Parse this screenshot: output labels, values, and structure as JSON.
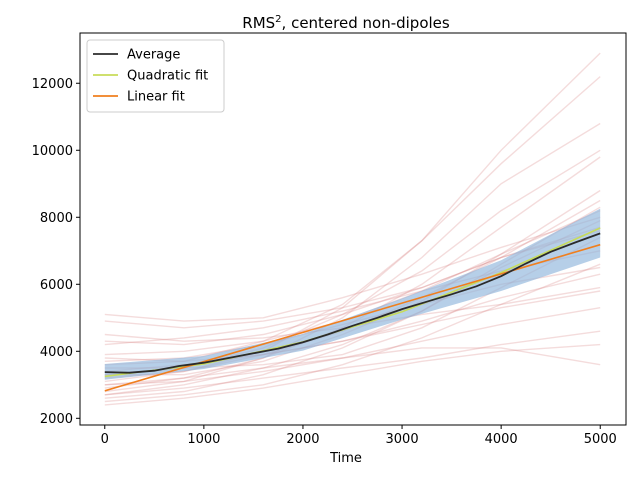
{
  "chart_data": {
    "type": "line",
    "title": "RMS², centered non-dipoles",
    "title_base": "RMS",
    "title_sup": "2",
    "title_rest": ", centered non-dipoles",
    "xlabel": "Time",
    "ylabel": "",
    "xlim": [
      -250,
      5260
    ],
    "ylim": [
      1800,
      13500
    ],
    "xticks": [
      0,
      1000,
      2000,
      3000,
      4000,
      5000
    ],
    "yticks": [
      2000,
      4000,
      6000,
      8000,
      10000,
      12000
    ],
    "grid": false,
    "legend_position": "top-left",
    "legend": [
      {
        "label": "Average",
        "color": "#2b2b2b"
      },
      {
        "label": "Quadratic fit",
        "color": "#c8dc5a"
      },
      {
        "label": "Linear fit",
        "color": "#f07f1e"
      }
    ],
    "series": [
      {
        "name": "Average",
        "color": "#2b2b2b",
        "x": [
          0,
          250,
          500,
          750,
          1000,
          1250,
          1500,
          1750,
          2000,
          2250,
          2500,
          2750,
          3000,
          3250,
          3500,
          3750,
          4000,
          4250,
          4500,
          4750,
          5000
        ],
        "y": [
          3380,
          3360,
          3420,
          3560,
          3660,
          3800,
          3940,
          4080,
          4270,
          4500,
          4760,
          5000,
          5260,
          5480,
          5700,
          5940,
          6240,
          6620,
          6970,
          7250,
          7520
        ]
      },
      {
        "name": "Quadratic fit",
        "color": "#c8dc5a",
        "x": [
          0,
          1000,
          2000,
          3000,
          4000,
          5000
        ],
        "y": [
          3250,
          3620,
          4280,
          5180,
          6350,
          7680
        ]
      },
      {
        "name": "Linear fit",
        "color": "#f07f1e",
        "x": [
          0,
          5000
        ],
        "y": [
          2820,
          7180
        ]
      }
    ],
    "band": {
      "color": "#8fb6dc",
      "x": [
        0,
        1000,
        2000,
        3000,
        4000,
        5000
      ],
      "upper": [
        3620,
        3860,
        4520,
        5580,
        6720,
        8260
      ],
      "lower": [
        3150,
        3470,
        4020,
        4950,
        5800,
        6800
      ]
    },
    "background_runs_color": "#d98080",
    "background_runs": [
      {
        "x": [
          0,
          800,
          1600,
          2400,
          3200,
          4000,
          5000
        ],
        "y": [
          2400,
          2600,
          2900,
          3300,
          3700,
          4000,
          4200
        ]
      },
      {
        "x": [
          0,
          800,
          1600,
          2400,
          3200,
          4000,
          5000
        ],
        "y": [
          2700,
          2900,
          3200,
          3500,
          3800,
          4200,
          4600
        ]
      },
      {
        "x": [
          0,
          800,
          1600,
          2400,
          3200,
          4000,
          5000
        ],
        "y": [
          3000,
          3200,
          3500,
          3800,
          4300,
          4800,
          5300
        ]
      },
      {
        "x": [
          0,
          800,
          1600,
          2400,
          3200,
          4000,
          5000
        ],
        "y": [
          3400,
          3600,
          3900,
          4300,
          4800,
          5300,
          5800
        ]
      },
      {
        "x": [
          0,
          800,
          1600,
          2400,
          3200,
          4000,
          5000
        ],
        "y": [
          3700,
          3800,
          4200,
          4800,
          5400,
          6000,
          6500
        ]
      },
      {
        "x": [
          0,
          800,
          1600,
          2400,
          3200,
          4000,
          5000
        ],
        "y": [
          4200,
          4400,
          4700,
          5200,
          5800,
          6400,
          7000
        ]
      },
      {
        "x": [
          0,
          800,
          1600,
          2400,
          3200,
          4000,
          5000
        ],
        "y": [
          5100,
          4900,
          5000,
          5600,
          6300,
          7100,
          8000
        ]
      },
      {
        "x": [
          0,
          800,
          1600,
          2400,
          3200,
          4000,
          5000
        ],
        "y": [
          3100,
          3400,
          3900,
          4600,
          5600,
          6800,
          8500
        ]
      },
      {
        "x": [
          0,
          800,
          1600,
          2400,
          3200,
          4000,
          5000
        ],
        "y": [
          2900,
          3200,
          3800,
          4700,
          6000,
          7700,
          9800
        ]
      },
      {
        "x": [
          0,
          800,
          1600,
          2400,
          3200,
          4000,
          5000
        ],
        "y": [
          3300,
          3500,
          4100,
          5100,
          6400,
          8200,
          10000
        ]
      },
      {
        "x": [
          0,
          800,
          1600,
          2400,
          3200,
          4000,
          5000
        ],
        "y": [
          2800,
          3100,
          3800,
          5000,
          6800,
          9000,
          10800
        ]
      },
      {
        "x": [
          0,
          800,
          1600,
          2400,
          3200,
          4000,
          5000
        ],
        "y": [
          3600,
          3700,
          4300,
          5400,
          7300,
          9600,
          12200
        ]
      },
      {
        "x": [
          0,
          800,
          1600,
          2400,
          3200,
          4000,
          5000
        ],
        "y": [
          3200,
          3400,
          4000,
          5300,
          7300,
          10000,
          12900
        ]
      },
      {
        "x": [
          0,
          800,
          1600,
          2400,
          3200,
          4000,
          5000
        ],
        "y": [
          2600,
          2800,
          3300,
          4100,
          5200,
          6500,
          7900
        ]
      },
      {
        "x": [
          0,
          800,
          1600,
          2400,
          3200,
          4000,
          5000
        ],
        "y": [
          3800,
          3700,
          3900,
          4300,
          4900,
          5600,
          6300
        ]
      },
      {
        "x": [
          0,
          800,
          1600,
          2400,
          3200,
          4000,
          5000
        ],
        "y": [
          4500,
          4300,
          4400,
          4700,
          5100,
          5400,
          5900
        ]
      },
      {
        "x": [
          0,
          800,
          1600,
          2400,
          3200,
          4000,
          5000
        ],
        "y": [
          3500,
          3500,
          3600,
          3900,
          4700,
          5900,
          7400
        ]
      },
      {
        "x": [
          0,
          800,
          1600,
          2400,
          3200,
          4000,
          5000
        ],
        "y": [
          2500,
          2700,
          3000,
          3600,
          4400,
          5400,
          6600
        ]
      },
      {
        "x": [
          0,
          800,
          1600,
          2400,
          3200,
          4000,
          5000
        ],
        "y": [
          3000,
          3100,
          3400,
          3800,
          4100,
          4100,
          3600
        ]
      },
      {
        "x": [
          0,
          800,
          1600,
          2400,
          3200,
          4000,
          5000
        ],
        "y": [
          4900,
          4700,
          4900,
          5300,
          5900,
          6800,
          7600
        ]
      },
      {
        "x": [
          0,
          800,
          1600,
          2400,
          3200,
          4000,
          5000
        ],
        "y": [
          2700,
          3000,
          3500,
          4200,
          5200,
          6600,
          8300
        ]
      },
      {
        "x": [
          0,
          800,
          1600,
          2400,
          3200,
          4000,
          5000
        ],
        "y": [
          3300,
          3300,
          3700,
          4500,
          5500,
          6900,
          8800
        ]
      },
      {
        "x": [
          0,
          800,
          1600,
          2400,
          3200,
          4000,
          5000
        ],
        "y": [
          3900,
          4000,
          4300,
          4900,
          5800,
          6900,
          8200
        ]
      },
      {
        "x": [
          0,
          800,
          1600,
          2400,
          3200,
          4000,
          5000
        ],
        "y": [
          4300,
          4200,
          4500,
          5100,
          5900,
          6800,
          7700
        ]
      }
    ]
  }
}
